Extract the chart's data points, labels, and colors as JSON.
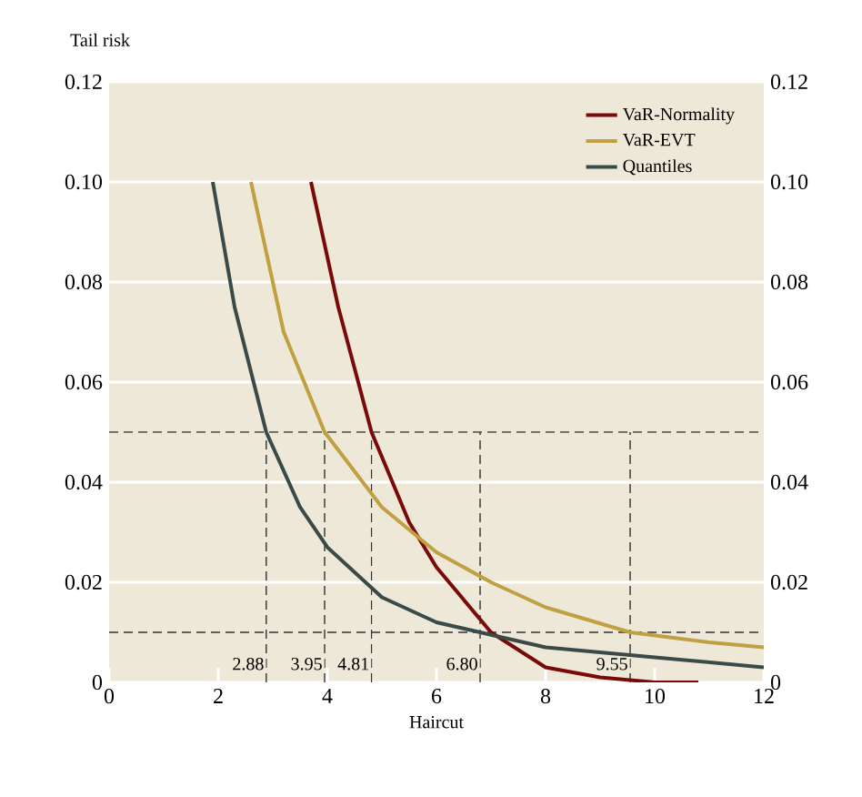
{
  "chart_data": {
    "type": "line",
    "xlabel": "Haircut",
    "ylabel": "Tail risk",
    "xlim": [
      0,
      12
    ],
    "xticks": [
      0,
      2,
      4,
      6,
      8,
      10,
      12
    ],
    "ylim": [
      0,
      0.12
    ],
    "yticks": [
      0,
      0.02,
      0.04,
      0.06,
      0.08,
      {
        "value": 0.1,
        "label": "0.10"
      },
      0.12
    ],
    "y2lim": [
      0,
      0.12
    ],
    "y2ticks": [
      0,
      0.02,
      0.04,
      0.06,
      0.08,
      {
        "value": 0.1,
        "label": "0.10"
      },
      0.12
    ],
    "grid": "y",
    "legend": "top right",
    "line_style": "solid",
    "marker": "none",
    "series": [
      {
        "name": "VaR-Normality",
        "color": "#7a0a0a",
        "x": [
          3.7,
          4.2,
          4.81,
          5.5,
          6,
          7,
          8,
          9,
          10,
          10.8
        ],
        "values": [
          0.1,
          0.075,
          0.05,
          0.032,
          0.023,
          0.01,
          0.003,
          0.001,
          0,
          0
        ]
      },
      {
        "name": "VaR-EVT",
        "color": "#c0a040",
        "x": [
          2.6,
          3.2,
          3.95,
          5,
          6,
          7,
          8,
          9.55,
          11,
          12
        ],
        "values": [
          0.1,
          0.07,
          0.05,
          0.035,
          0.026,
          0.02,
          0.015,
          0.01,
          0.008,
          0.007
        ]
      },
      {
        "name": "Quantiles",
        "color": "#3a4a48",
        "x": [
          1.9,
          2.3,
          2.88,
          3.5,
          4,
          5,
          6,
          6.8,
          8,
          10,
          12
        ],
        "values": [
          0.1,
          0.075,
          0.05,
          0.035,
          0.027,
          0.017,
          0.012,
          0.01,
          0.007,
          0.005,
          0.003
        ]
      }
    ],
    "ref_lines": [
      {
        "axis": "y",
        "value": 0.05,
        "color": "#333333",
        "line_style": "dashed"
      },
      {
        "axis": "y",
        "value": 0.01,
        "color": "#333333",
        "line_style": "dashed"
      },
      {
        "axis": "x",
        "value": 2.88,
        "label": "2.88",
        "color": "#333333",
        "line_style": "dashed"
      },
      {
        "axis": "x",
        "value": 3.95,
        "label": "3.95",
        "color": "#333333",
        "line_style": "dashed"
      },
      {
        "axis": "x",
        "value": 4.81,
        "label": "4.81",
        "color": "#333333",
        "line_style": "dashed"
      },
      {
        "axis": "x",
        "value": 6.8,
        "label": "6.80",
        "color": "#333333",
        "line_style": "dashed"
      },
      {
        "axis": "x",
        "value": 9.55,
        "label": "9.55",
        "color": "#333333",
        "line_style": "dashed"
      }
    ]
  }
}
